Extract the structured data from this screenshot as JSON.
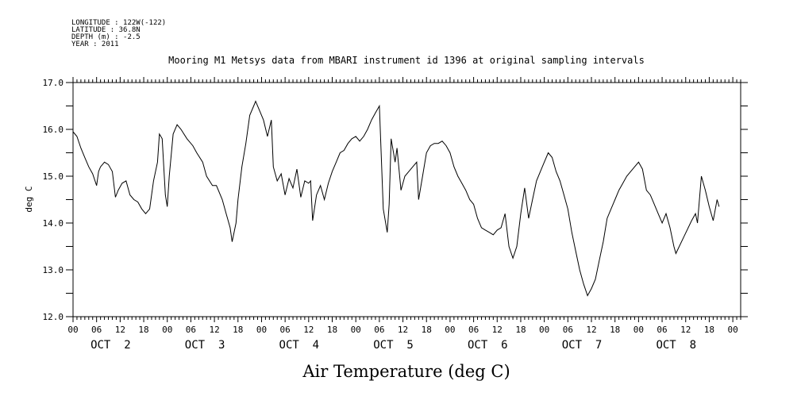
{
  "meta": {
    "longitude": "LONGITUDE : 122W(-122)",
    "latitude": "LATITUDE : 36.8N",
    "depth": "DEPTH (m) : -2.5",
    "year": "YEAR : 2011"
  },
  "chart_data": {
    "type": "line",
    "title": "Mooring M1 Metsys data from MBARI instrument id 1396 at original sampling intervals",
    "xlabel": "Air Temperature (deg C)",
    "ylabel": "deg C",
    "ylim": [
      12.0,
      17.0
    ],
    "yticks": [
      "12.0",
      "13.0",
      "14.0",
      "15.0",
      "16.0",
      "17.0"
    ],
    "xlim_hours": [
      0,
      170
    ],
    "x_unit": "hours since OCT 2 00",
    "hour_tick_labels": [
      "00",
      "06",
      "12",
      "18"
    ],
    "day_labels": [
      "OCT  2",
      "OCT  3",
      "OCT  4",
      "OCT  5",
      "OCT  6",
      "OCT  7",
      "OCT  8"
    ],
    "grid": false,
    "series": [
      {
        "points": [
          [
            0,
            15.95
          ],
          [
            1,
            15.85
          ],
          [
            2,
            15.6
          ],
          [
            3,
            15.4
          ],
          [
            4,
            15.2
          ],
          [
            5,
            15.05
          ],
          [
            6,
            14.8
          ],
          [
            6.5,
            15.1
          ],
          [
            7,
            15.2
          ],
          [
            8,
            15.3
          ],
          [
            9,
            15.25
          ],
          [
            10,
            15.1
          ],
          [
            10.8,
            14.55
          ],
          [
            11.5,
            14.7
          ],
          [
            12.5,
            14.85
          ],
          [
            13.5,
            14.9
          ],
          [
            14.5,
            14.6
          ],
          [
            15.5,
            14.5
          ],
          [
            16.5,
            14.45
          ],
          [
            17.5,
            14.3
          ],
          [
            18.5,
            14.2
          ],
          [
            19.5,
            14.3
          ],
          [
            20.5,
            14.9
          ],
          [
            21.5,
            15.3
          ],
          [
            22,
            15.9
          ],
          [
            22.7,
            15.8
          ],
          [
            23.5,
            14.6
          ],
          [
            24,
            14.35
          ],
          [
            24.5,
            15.0
          ],
          [
            25.5,
            15.9
          ],
          [
            26.5,
            16.1
          ],
          [
            27.5,
            16.0
          ],
          [
            29,
            15.8
          ],
          [
            30.5,
            15.65
          ],
          [
            31.5,
            15.5
          ],
          [
            33,
            15.3
          ],
          [
            34,
            15.0
          ],
          [
            35.5,
            14.8
          ],
          [
            36.5,
            14.8
          ],
          [
            38,
            14.5
          ],
          [
            39,
            14.2
          ],
          [
            40,
            13.9
          ],
          [
            40.5,
            13.6
          ],
          [
            41.5,
            14.0
          ],
          [
            42,
            14.5
          ],
          [
            43,
            15.2
          ],
          [
            44,
            15.7
          ],
          [
            45,
            16.3
          ],
          [
            46,
            16.5
          ],
          [
            46.5,
            16.6
          ],
          [
            47.5,
            16.4
          ],
          [
            48.5,
            16.2
          ],
          [
            49.5,
            15.85
          ],
          [
            50.5,
            16.2
          ],
          [
            51,
            15.2
          ],
          [
            52,
            14.9
          ],
          [
            53,
            15.05
          ],
          [
            54,
            14.6
          ],
          [
            55,
            14.95
          ],
          [
            56,
            14.75
          ],
          [
            57,
            15.15
          ],
          [
            58,
            14.55
          ],
          [
            59,
            14.9
          ],
          [
            60,
            14.85
          ],
          [
            60.5,
            14.9
          ],
          [
            61,
            14.05
          ],
          [
            62,
            14.6
          ],
          [
            63,
            14.8
          ],
          [
            64,
            14.5
          ],
          [
            65,
            14.85
          ],
          [
            66,
            15.1
          ],
          [
            67,
            15.3
          ],
          [
            68,
            15.5
          ],
          [
            69,
            15.55
          ],
          [
            70,
            15.7
          ],
          [
            71,
            15.8
          ],
          [
            72,
            15.85
          ],
          [
            73,
            15.75
          ],
          [
            74,
            15.85
          ],
          [
            75,
            16.0
          ],
          [
            76,
            16.2
          ],
          [
            77,
            16.35
          ],
          [
            78,
            16.5
          ],
          [
            79,
            14.3
          ],
          [
            80,
            13.8
          ],
          [
            80.5,
            14.4
          ],
          [
            81,
            15.8
          ],
          [
            82,
            15.3
          ],
          [
            82.5,
            15.6
          ],
          [
            83.5,
            14.7
          ],
          [
            84.5,
            15.0
          ],
          [
            85.5,
            15.1
          ],
          [
            86.5,
            15.2
          ],
          [
            87.5,
            15.3
          ],
          [
            88,
            14.5
          ],
          [
            89,
            15.0
          ],
          [
            90,
            15.5
          ],
          [
            91,
            15.65
          ],
          [
            92,
            15.7
          ],
          [
            93,
            15.7
          ],
          [
            94,
            15.75
          ],
          [
            95,
            15.65
          ],
          [
            96,
            15.5
          ],
          [
            97,
            15.2
          ],
          [
            98,
            15.0
          ],
          [
            99,
            14.85
          ],
          [
            100,
            14.7
          ],
          [
            101,
            14.5
          ],
          [
            102,
            14.4
          ],
          [
            103,
            14.1
          ],
          [
            104,
            13.9
          ],
          [
            105,
            13.85
          ],
          [
            106,
            13.8
          ],
          [
            107,
            13.75
          ],
          [
            108,
            13.85
          ],
          [
            109,
            13.9
          ],
          [
            110,
            14.2
          ],
          [
            111,
            13.5
          ],
          [
            112,
            13.25
          ],
          [
            113,
            13.5
          ],
          [
            114,
            14.2
          ],
          [
            115,
            14.75
          ],
          [
            116,
            14.1
          ],
          [
            117,
            14.5
          ],
          [
            118,
            14.9
          ],
          [
            119,
            15.1
          ],
          [
            120,
            15.3
          ],
          [
            121,
            15.5
          ],
          [
            122,
            15.4
          ],
          [
            123,
            15.1
          ],
          [
            124,
            14.9
          ],
          [
            125,
            14.6
          ],
          [
            126,
            14.3
          ],
          [
            127,
            13.8
          ],
          [
            128,
            13.4
          ],
          [
            129,
            13.0
          ],
          [
            130,
            12.7
          ],
          [
            131,
            12.45
          ],
          [
            132,
            12.6
          ],
          [
            133,
            12.8
          ],
          [
            134,
            13.2
          ],
          [
            135,
            13.6
          ],
          [
            136,
            14.1
          ],
          [
            137,
            14.3
          ],
          [
            138,
            14.5
          ],
          [
            139,
            14.7
          ],
          [
            140,
            14.85
          ],
          [
            141,
            15.0
          ],
          [
            142,
            15.1
          ],
          [
            143,
            15.2
          ],
          [
            144,
            15.3
          ],
          [
            145,
            15.15
          ],
          [
            146,
            14.7
          ],
          [
            147,
            14.6
          ],
          [
            148,
            14.4
          ],
          [
            149,
            14.2
          ],
          [
            150,
            14.0
          ],
          [
            151,
            14.2
          ],
          [
            152,
            13.9
          ],
          [
            153,
            13.5
          ],
          [
            153.5,
            13.35
          ],
          [
            155.5,
            13.7
          ],
          [
            157.5,
            14.05
          ],
          [
            158.5,
            14.2
          ],
          [
            159,
            14.0
          ],
          [
            160,
            15.0
          ],
          [
            161,
            14.7
          ],
          [
            162,
            14.35
          ],
          [
            163,
            14.05
          ],
          [
            164,
            14.5
          ],
          [
            164.5,
            14.35
          ]
        ]
      }
    ]
  }
}
